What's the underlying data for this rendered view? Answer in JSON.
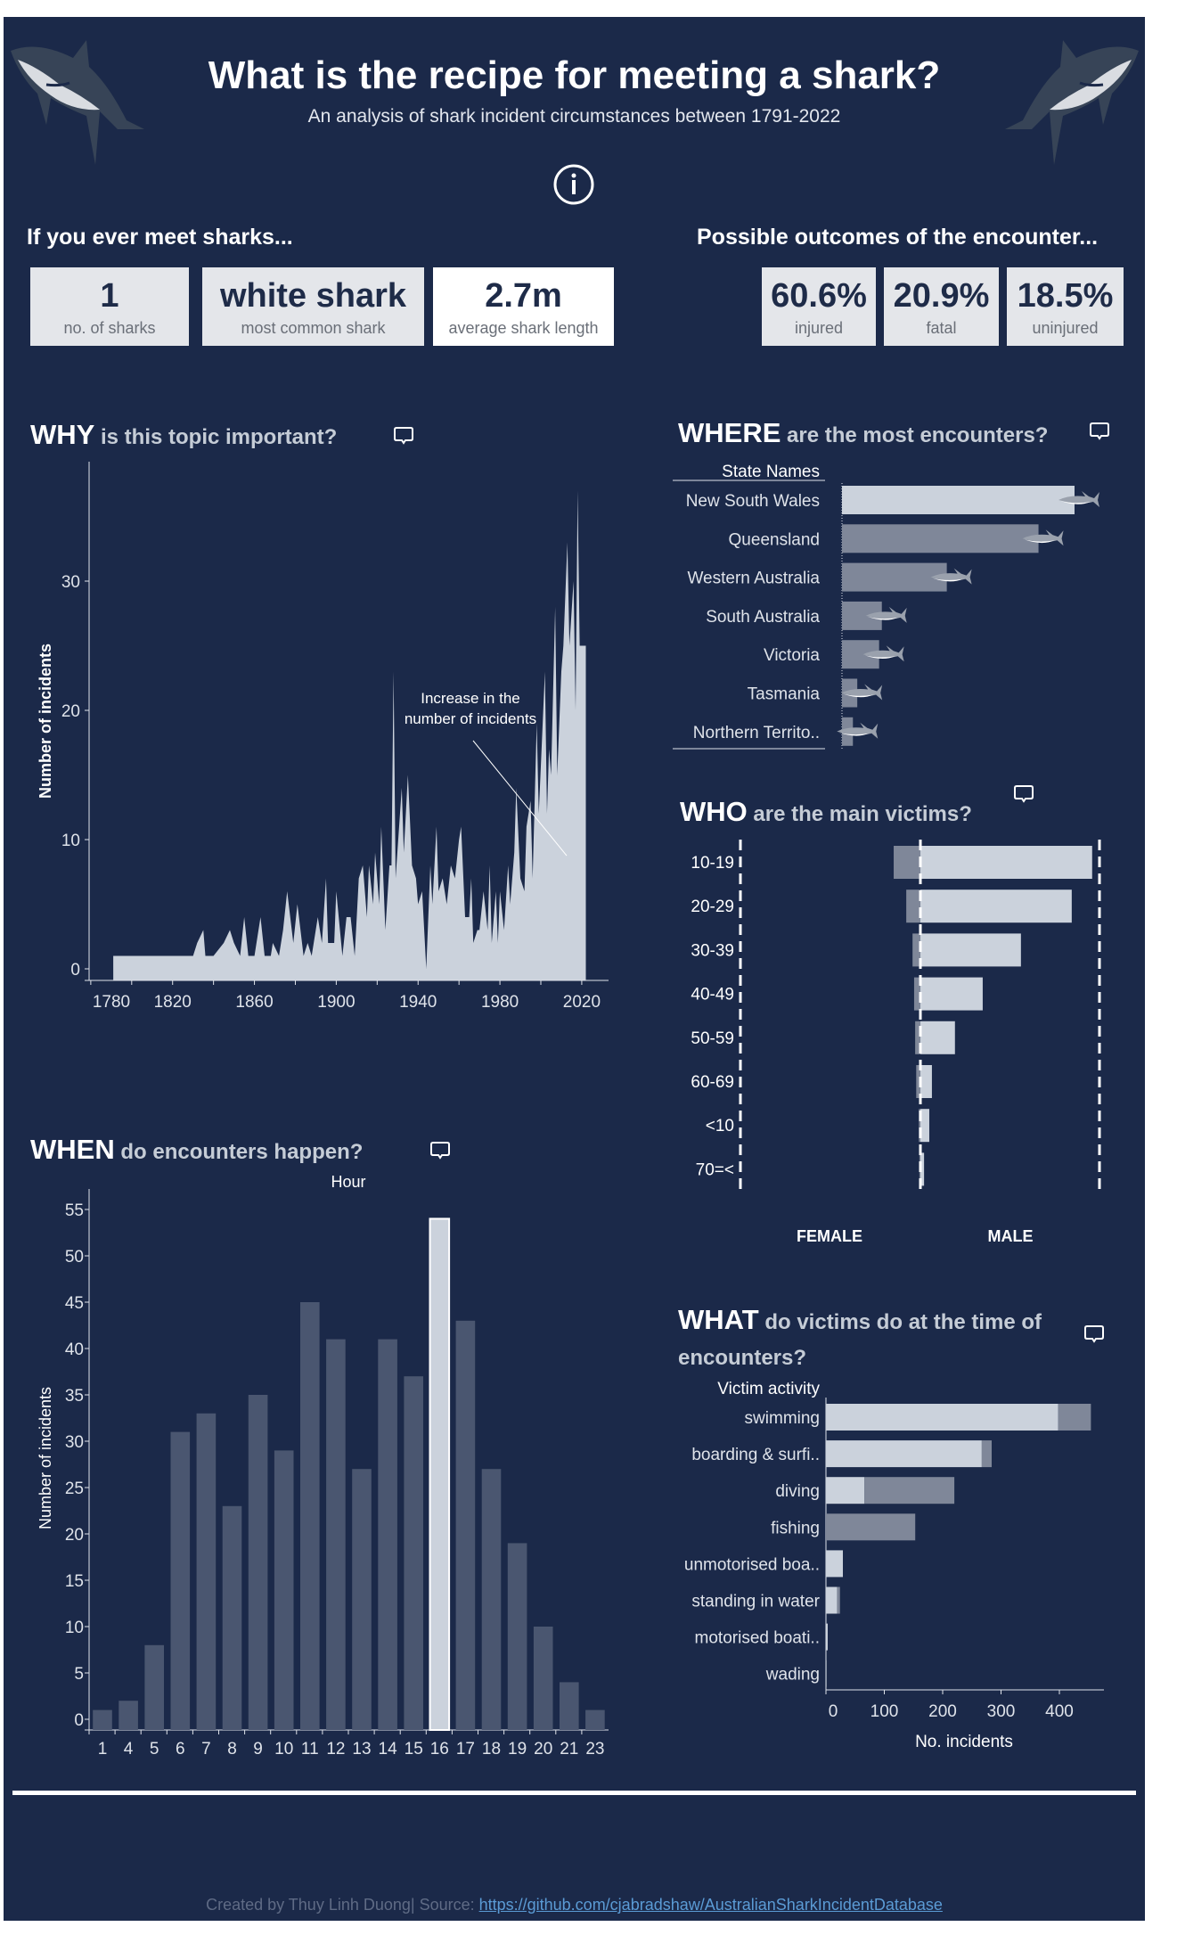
{
  "header": {
    "title": "What is the recipe for meeting a shark?",
    "subtitle": "An analysis of shark incident circumstances between 1791-2022",
    "info_icon": "info-circle-icon",
    "shark_images": "shark-illustration"
  },
  "facts": {
    "heading": "If you ever meet sharks...",
    "cards": [
      {
        "value": "1",
        "label": "no. of sharks"
      },
      {
        "value": "white shark",
        "label": "most common shark"
      },
      {
        "value": "2.7m",
        "label": "average shark length"
      }
    ]
  },
  "outcomes": {
    "heading": "Possible outcomes of the encounter...",
    "cards": [
      {
        "value": "60.6%",
        "label": "injured"
      },
      {
        "value": "20.9%",
        "label": "fatal"
      },
      {
        "value": "18.5%",
        "label": "uninjured"
      }
    ]
  },
  "sections": {
    "why": {
      "bold": "WHY",
      "rest": " is this topic important?"
    },
    "where": {
      "bold": "WHERE",
      "rest": " are the most encounters?"
    },
    "who": {
      "bold": "WHO",
      "rest": " are the main victims?"
    },
    "when": {
      "bold": "WHEN",
      "rest": " do encounters happen?"
    },
    "what": {
      "bold": "WHAT",
      "rest": " do victims do at the time of",
      "rest2": "encounters?"
    }
  },
  "footer": {
    "credit": "Created by Thuy Linh Duong| Source: ",
    "link": "https://github.com/cjabradshaw/AustralianSharkIncidentDatabase"
  },
  "colors": {
    "background": "#1b2949",
    "light_bar": "#cbd2dc",
    "dark_bar": "#7f8799",
    "hour_bar": "#4a5670",
    "card": "#e4e6ea",
    "text_dark": "#1e2b48"
  },
  "chart_data": [
    {
      "id": "why",
      "type": "area",
      "ylabel": "Number of incidents",
      "xlabel": "",
      "xticks": [
        "1780",
        "1820",
        "1860",
        "1900",
        "1940",
        "1980",
        "2020"
      ],
      "yticks": [
        "0",
        "10",
        "20",
        "30"
      ],
      "xlim": [
        1777,
        2033
      ],
      "ylim": [
        -0.9,
        39
      ],
      "annotation": [
        "Increase in the",
        "number of incidents"
      ],
      "points": [
        [
          1791,
          1
        ],
        [
          1830,
          1
        ],
        [
          1832,
          2
        ],
        [
          1835,
          3
        ],
        [
          1836,
          1
        ],
        [
          1840,
          1
        ],
        [
          1845,
          2
        ],
        [
          1848,
          3
        ],
        [
          1850,
          2
        ],
        [
          1853,
          1
        ],
        [
          1855,
          4
        ],
        [
          1857,
          1
        ],
        [
          1860,
          1
        ],
        [
          1863,
          4
        ],
        [
          1865,
          1
        ],
        [
          1868,
          1
        ],
        [
          1869,
          2
        ],
        [
          1872,
          1
        ],
        [
          1874,
          3
        ],
        [
          1876,
          6
        ],
        [
          1879,
          2
        ],
        [
          1881,
          5
        ],
        [
          1884,
          1
        ],
        [
          1886,
          2
        ],
        [
          1888,
          1
        ],
        [
          1891,
          4
        ],
        [
          1893,
          2
        ],
        [
          1895,
          7
        ],
        [
          1896,
          2
        ],
        [
          1899,
          2
        ],
        [
          1900,
          6
        ],
        [
          1903,
          1
        ],
        [
          1905,
          4
        ],
        [
          1907,
          4
        ],
        [
          1909,
          1
        ],
        [
          1911,
          7
        ],
        [
          1913,
          8
        ],
        [
          1915,
          4
        ],
        [
          1916,
          8
        ],
        [
          1918,
          5
        ],
        [
          1919,
          9
        ],
        [
          1921,
          5
        ],
        [
          1922,
          11
        ],
        [
          1924,
          3
        ],
        [
          1926,
          8
        ],
        [
          1927,
          8
        ],
        [
          1928,
          23
        ],
        [
          1929,
          7
        ],
        [
          1932,
          14
        ],
        [
          1933,
          9
        ],
        [
          1935,
          15
        ],
        [
          1937,
          8
        ],
        [
          1939,
          7
        ],
        [
          1940,
          5
        ],
        [
          1942,
          6
        ],
        [
          1944,
          0
        ],
        [
          1946,
          8
        ],
        [
          1947,
          5
        ],
        [
          1949,
          11
        ],
        [
          1950,
          6
        ],
        [
          1952,
          7
        ],
        [
          1954,
          5
        ],
        [
          1956,
          8
        ],
        [
          1958,
          7
        ],
        [
          1960,
          10
        ],
        [
          1961,
          11
        ],
        [
          1963,
          4
        ],
        [
          1965,
          4
        ],
        [
          1966,
          7
        ],
        [
          1967,
          2
        ],
        [
          1969,
          3
        ],
        [
          1970,
          3
        ],
        [
          1972,
          6
        ],
        [
          1974,
          3
        ],
        [
          1975,
          8
        ],
        [
          1976,
          2
        ],
        [
          1978,
          6
        ],
        [
          1979,
          2
        ],
        [
          1980,
          6
        ],
        [
          1982,
          3
        ],
        [
          1984,
          8
        ],
        [
          1985,
          5
        ],
        [
          1987,
          9
        ],
        [
          1988,
          14
        ],
        [
          1990,
          7
        ],
        [
          1992,
          6
        ],
        [
          1993,
          11
        ],
        [
          1995,
          13
        ],
        [
          1996,
          7
        ],
        [
          1998,
          19
        ],
        [
          1999,
          12
        ],
        [
          2002,
          23
        ],
        [
          2003,
          12
        ],
        [
          2004,
          17
        ],
        [
          2005,
          15
        ],
        [
          2007,
          28
        ],
        [
          2008,
          15
        ],
        [
          2010,
          23
        ],
        [
          2011,
          25
        ],
        [
          2013,
          33
        ],
        [
          2014,
          25
        ],
        [
          2016,
          30
        ],
        [
          2017,
          20
        ],
        [
          2018,
          37
        ],
        [
          2019,
          25
        ],
        [
          2022,
          25
        ]
      ],
      "grid": false
    },
    {
      "id": "where",
      "type": "bar",
      "orientation": "horizontal",
      "header": "State Names",
      "categories": [
        "New South Wales",
        "Queensland",
        "Western Australia",
        "South Australia",
        "Victoria",
        "Tasmania",
        "Northern Territo.."
      ],
      "values": [
        426,
        360,
        192,
        73,
        68,
        28,
        20
      ],
      "highlight": "New South Wales",
      "marker_icon": "shark-icon"
    },
    {
      "id": "who",
      "type": "bar",
      "orientation": "horizontal-diverging",
      "categories": [
        "10-19",
        "20-29",
        "30-39",
        "40-49",
        "50-59",
        "60-69",
        "<10",
        "70=<"
      ],
      "groups": [
        "FEMALE",
        "MALE"
      ],
      "series": [
        {
          "name": "FEMALE",
          "values": [
            51,
            27,
            15,
            12,
            10,
            8,
            3,
            2
          ]
        },
        {
          "name": "MALE",
          "values": [
            328,
            289,
            192,
            119,
            66,
            22,
            17,
            7
          ]
        }
      ],
      "xlim": [
        -342,
        342
      ]
    },
    {
      "id": "when",
      "type": "bar",
      "xlabel": "Hour",
      "ylabel": "Number of incidents",
      "categories": [
        "1",
        "4",
        "5",
        "6",
        "7",
        "8",
        "9",
        "10",
        "11",
        "12",
        "13",
        "14",
        "15",
        "16",
        "17",
        "18",
        "19",
        "20",
        "21",
        "23"
      ],
      "values": [
        1,
        2,
        8,
        31,
        33,
        23,
        35,
        29,
        45,
        41,
        27,
        41,
        37,
        54,
        43,
        27,
        19,
        10,
        4,
        1
      ],
      "yticks": [
        "0",
        "5",
        "10",
        "15",
        "20",
        "25",
        "30",
        "35",
        "40",
        "45",
        "50",
        "55"
      ],
      "ylim": [
        -1.15,
        58
      ],
      "highlight": "16"
    },
    {
      "id": "what",
      "type": "bar",
      "orientation": "horizontal-stacked",
      "header": "Victim activity",
      "xlabel": "No. incidents",
      "categories": [
        "swimming",
        "boarding & surfi..",
        "diving",
        "fishing",
        "unmotorised boa..",
        "standing in water",
        "motorised boati..",
        "wading"
      ],
      "series": [
        {
          "values": [
            398,
            267,
            66,
            0,
            29,
            19,
            3,
            1
          ]
        },
        {
          "values": [
            56,
            17,
            154,
            153,
            0,
            5,
            0,
            0
          ]
        }
      ],
      "xticks": [
        "0",
        "100",
        "200",
        "300",
        "400"
      ],
      "xlim": [
        0,
        477
      ]
    }
  ]
}
